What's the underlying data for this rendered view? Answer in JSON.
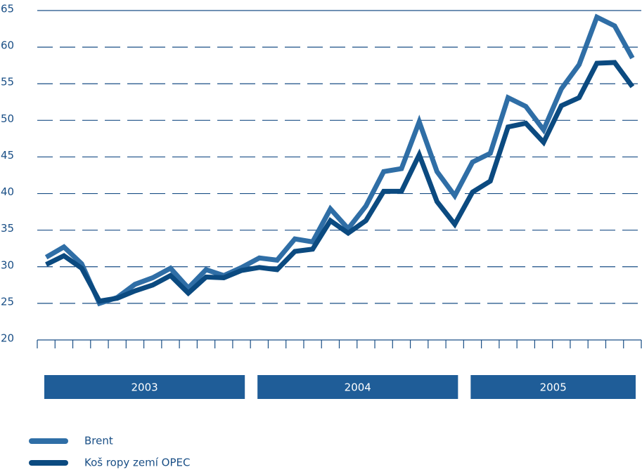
{
  "chart_data": {
    "type": "line",
    "categories": [
      null,
      null,
      null,
      null,
      null,
      null,
      null,
      null,
      null,
      null,
      null,
      null,
      null,
      null,
      null,
      null,
      null,
      null,
      null,
      null,
      null,
      null,
      null,
      null,
      null,
      null,
      null,
      null,
      null,
      null,
      null,
      null,
      null,
      null
    ],
    "periods": [
      "2003",
      "2004",
      "2005"
    ],
    "series": [
      {
        "name": "Brent",
        "color": "#2f6ea6",
        "values": [
          31.3,
          32.7,
          30.4,
          25.0,
          25.8,
          27.6,
          28.5,
          29.8,
          27.1,
          29.6,
          28.8,
          29.9,
          31.2,
          30.9,
          33.8,
          33.4,
          37.9,
          35.2,
          38.3,
          43.0,
          43.4,
          49.8,
          43.0,
          39.7,
          44.3,
          45.5,
          53.1,
          51.9,
          48.7,
          54.3,
          57.6,
          64.1,
          62.9,
          58.5
        ]
      },
      {
        "name": "Koš ropy zemí OPEC",
        "color": "#0b4a80",
        "values": [
          30.3,
          31.5,
          29.8,
          25.3,
          25.7,
          26.7,
          27.5,
          28.8,
          26.4,
          28.6,
          28.5,
          29.5,
          29.9,
          29.6,
          32.1,
          32.4,
          36.3,
          34.6,
          36.3,
          40.3,
          40.3,
          45.3,
          38.9,
          35.8,
          40.2,
          41.7,
          49.1,
          49.6,
          47.0,
          52.0,
          53.1,
          57.8,
          57.9,
          54.6
        ]
      }
    ],
    "ylim": [
      20,
      65
    ],
    "yticks": [
      20,
      25,
      30,
      35,
      40,
      45,
      50,
      55,
      60,
      65
    ],
    "grid": true
  }
}
